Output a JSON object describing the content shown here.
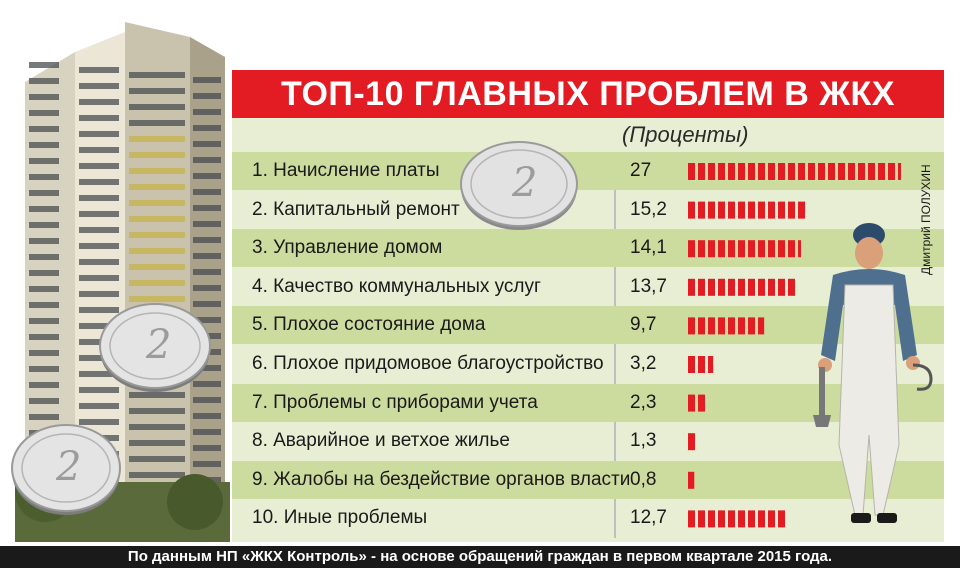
{
  "title": "ТОП-10 ГЛАВНЫХ ПРОБЛЕМ В ЖКХ",
  "units": "(Проценты)",
  "credit": "Дмитрий ПОЛУХИН",
  "footer": "По данным НП «ЖКХ Контроль» - на основе обращений граждан в первом квартале 2015 года.",
  "colors": {
    "accent_red": "#e31b23",
    "panel_light": "#e7eed4",
    "panel_dark": "#ccdb9e"
  },
  "icons": [
    "building-illustration",
    "coin-icon",
    "worker-illustration"
  ],
  "coin_text": "2 РУБЛЯ",
  "chart_data": {
    "type": "bar",
    "orientation": "horizontal",
    "title": "ТОП-10 ГЛАВНЫХ ПРОБЛЕМ В ЖКХ",
    "unit": "(Проценты)",
    "categories": [
      "1. Начисление платы",
      "2. Капитальный ремонт",
      "3. Управление домом",
      "4. Качество коммунальных услуг",
      "5. Плохое состояние дома",
      "6. Плохое придомовое благоустройство",
      "7. Проблемы с приборами учета",
      "8. Аварийное и ветхое жилье",
      "9. Жалобы на бездействие органов власти",
      "10. Иные проблемы"
    ],
    "values": [
      27,
      15.2,
      14.1,
      13.7,
      9.7,
      3.2,
      2.3,
      1.3,
      0.8,
      12.7
    ],
    "value_labels": [
      "27",
      "15,2",
      "14,1",
      "13,7",
      "9,7",
      "3,2",
      "2,3",
      "1,3",
      "0,8",
      "12,7"
    ],
    "xlim": [
      0,
      27
    ],
    "grid": false,
    "legend": "none"
  }
}
